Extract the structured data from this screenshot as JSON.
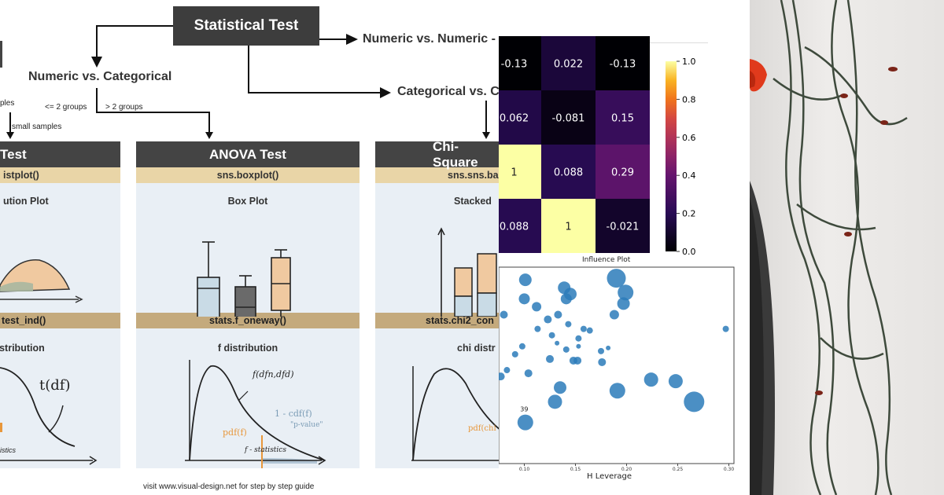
{
  "flowchart": {
    "root": "Statistical Test",
    "branch_numeric_numeric": "Numeric vs. Numeric -",
    "branch_numeric_categorical": "Numeric vs. Categorical",
    "branch_categorical_categorical": "Categorical vs. C",
    "label_samples": "ples",
    "label_le2": "<= 2 groups",
    "label_gt2": "> 2 groups",
    "label_small": "small samples"
  },
  "cards": [
    {
      "head": "Test",
      "code1": "istplot()",
      "plot1": "ution Plot",
      "code2": "test_ind()",
      "plot2": "distribution",
      "ann1": "t(df)",
      "ann2": "istics"
    },
    {
      "head": "ANOVA Test",
      "code1": "sns.boxplot()",
      "plot1": "Box Plot",
      "code2": "stats.f_oneway()",
      "plot2": "f distribution",
      "ann1": "f(dfn,dfd)",
      "ann2": "1 - cdf(f)",
      "ann3": "\"p-value\"",
      "ann4": "pdf(f)",
      "ann5": "f - statistics"
    },
    {
      "head": "Chi-Square",
      "code1": "sns.sns.ba",
      "plot1": "Stacked",
      "code2": "stats.chi2_con",
      "plot2": "chi distr",
      "ann1": "pdf(chi"
    }
  ],
  "footer": "visit www.visual-design.net for step by step guide",
  "heatmap": {
    "cells": [
      [
        "-0.13",
        "0.022",
        "-0.13"
      ],
      [
        "0.062",
        "-0.081",
        "0.15"
      ],
      [
        "1",
        "0.088",
        "0.29"
      ],
      [
        "0.088",
        "1",
        "-0.021"
      ]
    ],
    "values": [
      [
        -0.13,
        0.022,
        -0.13
      ],
      [
        0.062,
        -0.081,
        0.15
      ],
      [
        1,
        0.088,
        0.29
      ],
      [
        0.088,
        1,
        -0.021
      ]
    ],
    "colorbar_ticks": [
      "1.0",
      "0.8",
      "0.6",
      "0.4",
      "0.2",
      "0.0"
    ]
  },
  "chart_data": {
    "type": "scatter",
    "title": "Influence Plot",
    "xlabel": "H Leverage",
    "ylabel": "",
    "xlim": [
      0.075,
      0.305
    ],
    "ylim": [
      -2.6,
      3.6
    ],
    "x_ticks": [
      "0.10",
      "0.15",
      "0.20",
      "0.25",
      "0.30"
    ],
    "annotation": "39",
    "points": [
      {
        "x": 0.101,
        "y": 3.2,
        "r": 8
      },
      {
        "x": 0.139,
        "y": 2.95,
        "r": 8
      },
      {
        "x": 0.19,
        "y": 3.25,
        "r": 12
      },
      {
        "x": 0.145,
        "y": 2.75,
        "r": 8
      },
      {
        "x": 0.141,
        "y": 2.6,
        "r": 7
      },
      {
        "x": 0.199,
        "y": 2.8,
        "r": 10
      },
      {
        "x": 0.1,
        "y": 2.6,
        "r": 7
      },
      {
        "x": 0.112,
        "y": 2.35,
        "r": 6
      },
      {
        "x": 0.197,
        "y": 2.45,
        "r": 8
      },
      {
        "x": 0.08,
        "y": 2.1,
        "r": 5
      },
      {
        "x": 0.133,
        "y": 2.1,
        "r": 5
      },
      {
        "x": 0.123,
        "y": 1.95,
        "r": 5
      },
      {
        "x": 0.188,
        "y": 2.1,
        "r": 6
      },
      {
        "x": 0.143,
        "y": 1.8,
        "r": 4
      },
      {
        "x": 0.158,
        "y": 1.65,
        "r": 4
      },
      {
        "x": 0.113,
        "y": 1.65,
        "r": 4
      },
      {
        "x": 0.164,
        "y": 1.6,
        "r": 4
      },
      {
        "x": 0.297,
        "y": 1.65,
        "r": 4
      },
      {
        "x": 0.127,
        "y": 1.45,
        "r": 4
      },
      {
        "x": 0.153,
        "y": 1.35,
        "r": 4
      },
      {
        "x": 0.132,
        "y": 1.2,
        "r": 3
      },
      {
        "x": 0.098,
        "y": 1.1,
        "r": 4
      },
      {
        "x": 0.141,
        "y": 1.0,
        "r": 4
      },
      {
        "x": 0.153,
        "y": 1.1,
        "r": 3
      },
      {
        "x": 0.182,
        "y": 1.05,
        "r": 3
      },
      {
        "x": 0.175,
        "y": 0.95,
        "r": 4
      },
      {
        "x": 0.072,
        "y": 1.15,
        "r": 3
      },
      {
        "x": 0.091,
        "y": 0.85,
        "r": 4
      },
      {
        "x": 0.125,
        "y": 0.7,
        "r": 5
      },
      {
        "x": 0.148,
        "y": 0.65,
        "r": 5
      },
      {
        "x": 0.152,
        "y": 0.65,
        "r": 5
      },
      {
        "x": 0.176,
        "y": 0.6,
        "r": 5
      },
      {
        "x": 0.083,
        "y": 0.35,
        "r": 4
      },
      {
        "x": 0.104,
        "y": 0.25,
        "r": 5
      },
      {
        "x": 0.077,
        "y": 0.15,
        "r": 5
      },
      {
        "x": 0.224,
        "y": 0.05,
        "r": 9
      },
      {
        "x": 0.248,
        "y": 0.0,
        "r": 9
      },
      {
        "x": 0.135,
        "y": -0.2,
        "r": 8
      },
      {
        "x": 0.191,
        "y": -0.3,
        "r": 10
      },
      {
        "x": 0.13,
        "y": -0.65,
        "r": 9
      },
      {
        "x": 0.266,
        "y": -0.65,
        "r": 13
      },
      {
        "x": 0.101,
        "y": -1.3,
        "r": 10
      }
    ]
  }
}
